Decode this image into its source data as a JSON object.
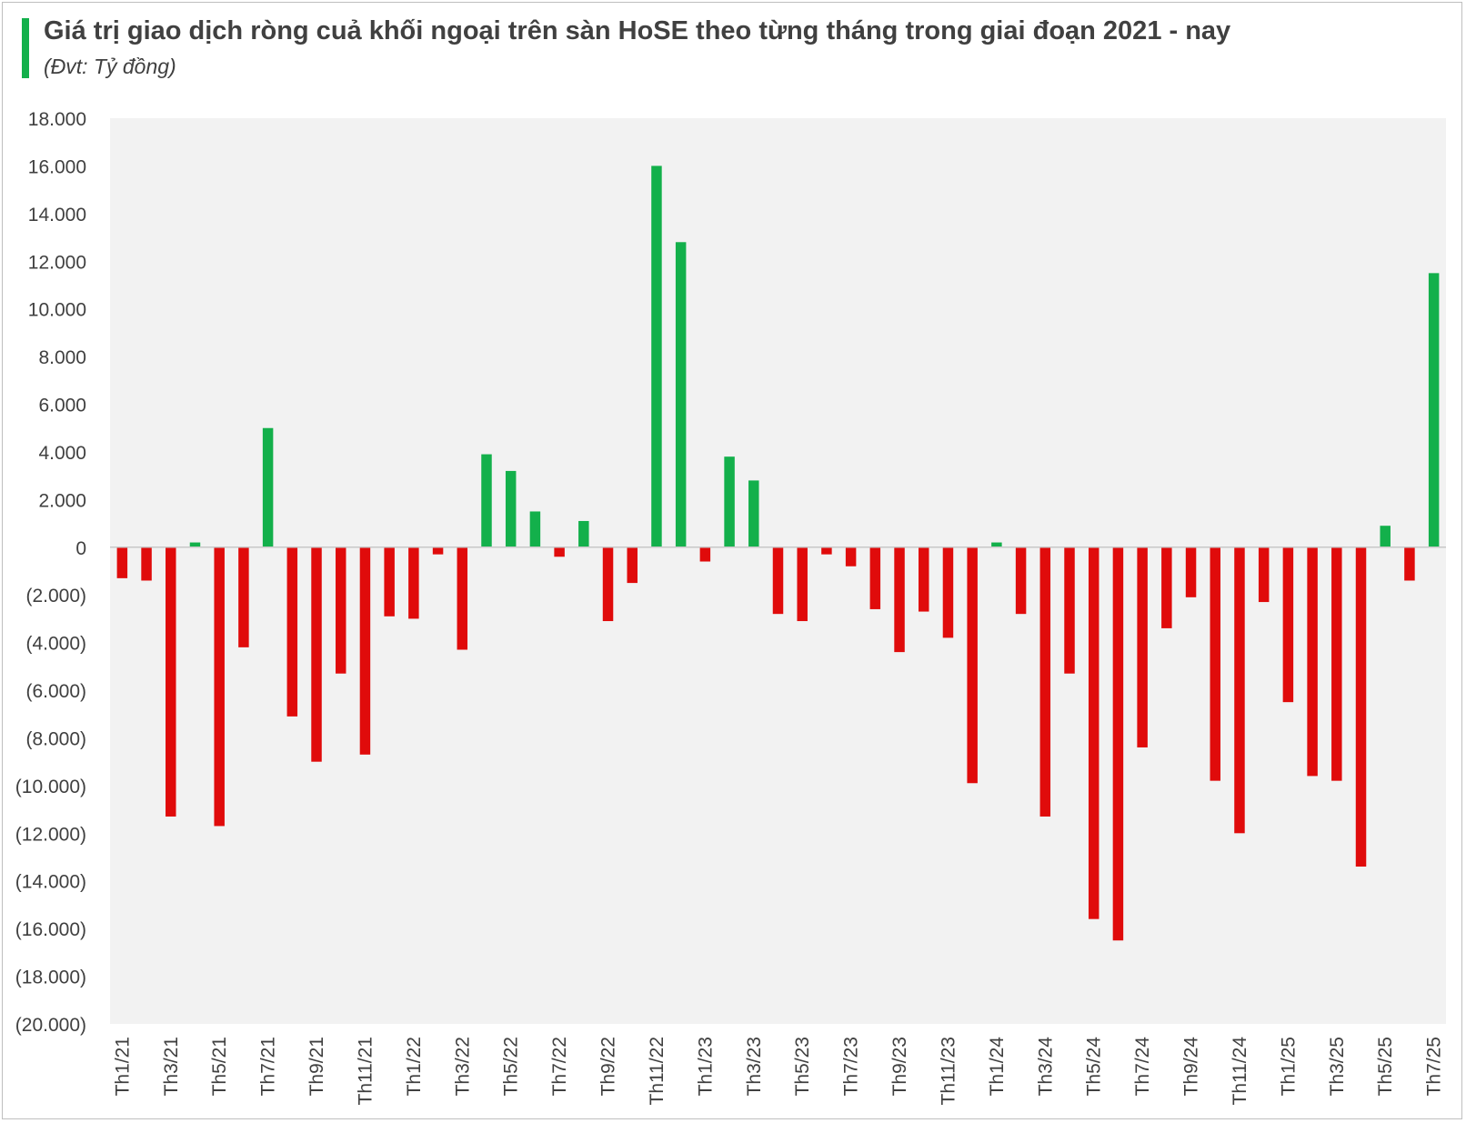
{
  "header": {
    "title": "Giá trị giao dịch ròng cuả khối ngoại trên sàn HoSE theo từng tháng trong giai đoạn 2021 - nay",
    "subtitle": "(Đvt: Tỷ đồng)"
  },
  "colors": {
    "positive": "#13b04b",
    "negative": "#e00b0b",
    "plot_background": "#f2f2f2",
    "accent_bar": "#13b04b",
    "text": "#404040"
  },
  "chart_data": {
    "type": "bar",
    "title": "Giá trị giao dịch ròng cuả khối ngoại trên sàn HoSE theo từng tháng trong giai đoạn 2021 - nay",
    "subtitle": "(Đvt: Tỷ đồng)",
    "xlabel": "",
    "ylabel": "",
    "ylim": [
      -20000,
      18000
    ],
    "y_ticks": [
      18000,
      16000,
      14000,
      12000,
      10000,
      8000,
      6000,
      4000,
      2000,
      0,
      -2000,
      -4000,
      -6000,
      -8000,
      -10000,
      -12000,
      -14000,
      -16000,
      -18000,
      -20000
    ],
    "y_tick_labels": [
      "18.000",
      "16.000",
      "14.000",
      "12.000",
      "10.000",
      "8.000",
      "6.000",
      "4.000",
      "2.000",
      "0",
      "(2.000)",
      "(4.000)",
      "(6.000)",
      "(8.000)",
      "(10.000)",
      "(12.000)",
      "(14.000)",
      "(16.000)",
      "(18.000)",
      "(20.000)"
    ],
    "grid": false,
    "legend": "none",
    "categories": [
      "Th1/21",
      "Th2/21",
      "Th3/21",
      "Th4/21",
      "Th5/21",
      "Th6/21",
      "Th7/21",
      "Th8/21",
      "Th9/21",
      "Th10/21",
      "Th11/21",
      "Th12/21",
      "Th1/22",
      "Th2/22",
      "Th3/22",
      "Th4/22",
      "Th5/22",
      "Th6/22",
      "Th7/22",
      "Th8/22",
      "Th9/22",
      "Th10/22",
      "Th11/22",
      "Th12/22",
      "Th1/23",
      "Th2/23",
      "Th3/23",
      "Th4/23",
      "Th5/23",
      "Th6/23",
      "Th7/23",
      "Th8/23",
      "Th9/23",
      "Th10/23",
      "Th11/23",
      "Th12/23",
      "Th1/24",
      "Th2/24",
      "Th3/24",
      "Th4/24",
      "Th5/24",
      "Th6/24",
      "Th7/24",
      "Th8/24",
      "Th9/24",
      "Th10/24",
      "Th11/24",
      "Th12/24",
      "Th1/25",
      "Th2/25",
      "Th3/25",
      "Th4/25",
      "Th5/25",
      "Th6/25",
      "Th7/25"
    ],
    "x_tick_labels": [
      "Th1/21",
      "Th3/21",
      "Th5/21",
      "Th7/21",
      "Th9/21",
      "Th11/21",
      "Th1/22",
      "Th3/22",
      "Th5/22",
      "Th7/22",
      "Th9/22",
      "Th11/22",
      "Th1/23",
      "Th3/23",
      "Th5/23",
      "Th7/23",
      "Th9/23",
      "Th11/23",
      "Th1/24",
      "Th3/24",
      "Th5/24",
      "Th7/24",
      "Th9/24",
      "Th11/24",
      "Th1/25",
      "Th3/25",
      "Th5/25",
      "Th7/25"
    ],
    "values": [
      -1300,
      -1400,
      -11300,
      200,
      -11700,
      -4200,
      5000,
      -7100,
      -9000,
      -5300,
      -8700,
      -2900,
      -3000,
      -300,
      -4300,
      3900,
      3200,
      1500,
      -400,
      1100,
      -3100,
      -1500,
      16000,
      12800,
      -600,
      3800,
      2800,
      -2800,
      -3100,
      -300,
      -800,
      -2600,
      -4400,
      -2700,
      -3800,
      -9900,
      200,
      -2800,
      -11300,
      -5300,
      -15600,
      -16500,
      -8400,
      -3400,
      -2100,
      -9800,
      -12000,
      -2300,
      -6500,
      -9600,
      -9800,
      -13400,
      900,
      -1400,
      11500
    ]
  }
}
